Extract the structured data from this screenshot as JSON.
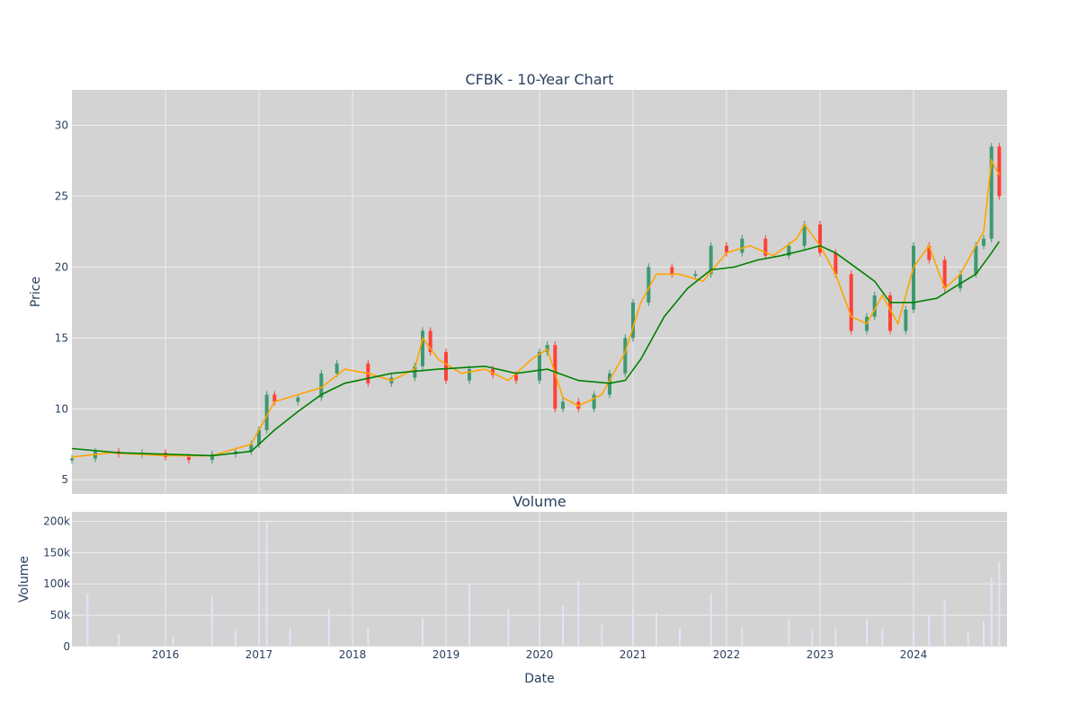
{
  "chart_data": [
    {
      "type": "candlestick",
      "title": "CFBK - 10-Year Chart",
      "xlabel": "",
      "ylabel": "Price",
      "ylim": [
        4,
        32.5
      ],
      "yticks": [
        5,
        10,
        15,
        20,
        25,
        30
      ],
      "grid": true,
      "legend": "none",
      "colors": {
        "plot_bg": "#d3d3d3",
        "grid": "#eeeeee",
        "increasing": "#3d9970",
        "decreasing": "#ff4136",
        "ma_short": "#ffa500",
        "ma_long": "#008000",
        "text": "#2a3f5f"
      },
      "series": [
        {
          "type": "ohlc_close_approx",
          "x": [
            "2015-01",
            "2015-04",
            "2015-07",
            "2015-10",
            "2016-01",
            "2016-04",
            "2016-07",
            "2016-10",
            "2016-12",
            "2017-01",
            "2017-02",
            "2017-03",
            "2017-06",
            "2017-09",
            "2017-11",
            "2018-03",
            "2018-06",
            "2018-09",
            "2018-10",
            "2018-11",
            "2019-01",
            "2019-04",
            "2019-07",
            "2019-10",
            "2020-01",
            "2020-02",
            "2020-03",
            "2020-04",
            "2020-06",
            "2020-08",
            "2020-10",
            "2020-12",
            "2021-01",
            "2021-03",
            "2021-06",
            "2021-09",
            "2021-11",
            "2022-01",
            "2022-03",
            "2022-06",
            "2022-09",
            "2022-11",
            "2023-01",
            "2023-03",
            "2023-05",
            "2023-07",
            "2023-08",
            "2023-10",
            "2023-12",
            "2024-01",
            "2024-03",
            "2024-05",
            "2024-07",
            "2024-09",
            "2024-10",
            "2024-11",
            "2024-12"
          ],
          "y": [
            6.5,
            7.0,
            6.8,
            6.9,
            6.6,
            6.4,
            6.8,
            7.0,
            7.5,
            8.5,
            11.0,
            10.5,
            10.8,
            12.5,
            13.2,
            11.8,
            12.2,
            13.0,
            15.5,
            14.0,
            12.0,
            12.8,
            12.4,
            12.0,
            14.0,
            14.5,
            10.0,
            10.5,
            10.0,
            11.0,
            12.5,
            15.0,
            17.5,
            20.0,
            19.5,
            19.5,
            21.5,
            21.0,
            22.0,
            20.8,
            21.5,
            23.0,
            21.0,
            19.5,
            15.5,
            16.5,
            18.0,
            15.5,
            17.0,
            21.5,
            20.5,
            18.5,
            19.5,
            21.5,
            22.0,
            28.5,
            25.0
          ]
        },
        {
          "name": "",
          "type": "line",
          "role": "short moving average",
          "x": [
            "2015-01",
            "2015-06",
            "2016-01",
            "2016-07",
            "2016-12",
            "2017-01",
            "2017-03",
            "2017-06",
            "2017-09",
            "2017-12",
            "2018-03",
            "2018-06",
            "2018-09",
            "2018-10",
            "2018-12",
            "2019-03",
            "2019-06",
            "2019-09",
            "2019-12",
            "2020-02",
            "2020-04",
            "2020-06",
            "2020-09",
            "2020-12",
            "2021-02",
            "2021-04",
            "2021-07",
            "2021-10",
            "2022-01",
            "2022-04",
            "2022-07",
            "2022-10",
            "2022-11",
            "2023-01",
            "2023-03",
            "2023-05",
            "2023-07",
            "2023-09",
            "2023-11",
            "2024-01",
            "2024-03",
            "2024-05",
            "2024-07",
            "2024-09",
            "2024-10",
            "2024-11",
            "2024-12"
          ],
          "y": [
            6.6,
            6.9,
            6.7,
            6.7,
            7.5,
            8.5,
            10.5,
            11.0,
            11.5,
            12.8,
            12.5,
            12.0,
            12.8,
            15.0,
            13.5,
            12.5,
            12.8,
            12.0,
            13.5,
            14.2,
            10.8,
            10.2,
            11.0,
            14.0,
            17.5,
            19.5,
            19.5,
            19.0,
            21.0,
            21.5,
            20.8,
            22.0,
            23.0,
            21.5,
            19.5,
            16.5,
            16.0,
            18.0,
            16.0,
            20.0,
            21.5,
            18.5,
            19.5,
            21.5,
            22.5,
            27.5,
            26.5
          ]
        },
        {
          "name": "",
          "type": "line",
          "role": "long moving average",
          "x": [
            "2015-01",
            "2015-07",
            "2016-01",
            "2016-07",
            "2016-12",
            "2017-03",
            "2017-06",
            "2017-09",
            "2017-12",
            "2018-06",
            "2018-12",
            "2019-06",
            "2019-10",
            "2020-02",
            "2020-06",
            "2020-10",
            "2020-12",
            "2021-02",
            "2021-05",
            "2021-08",
            "2021-11",
            "2022-02",
            "2022-05",
            "2022-08",
            "2022-11",
            "2023-01",
            "2023-03",
            "2023-05",
            "2023-08",
            "2023-10",
            "2024-01",
            "2024-04",
            "2024-06",
            "2024-09",
            "2024-11",
            "2024-12"
          ],
          "y": [
            7.2,
            6.9,
            6.8,
            6.7,
            7.0,
            8.5,
            9.8,
            11.0,
            11.8,
            12.5,
            12.8,
            13.0,
            12.5,
            12.8,
            12.0,
            11.8,
            12.0,
            13.5,
            16.5,
            18.5,
            19.8,
            20.0,
            20.5,
            20.8,
            21.2,
            21.5,
            21.0,
            20.2,
            19.0,
            17.5,
            17.5,
            17.8,
            18.5,
            19.5,
            21.0,
            21.8
          ]
        }
      ],
      "xticks": [
        "2016",
        "2017",
        "2018",
        "2019",
        "2020",
        "2021",
        "2022",
        "2023",
        "2024"
      ]
    },
    {
      "type": "bar",
      "title": "Volume",
      "xlabel": "Date",
      "ylabel": "Volume",
      "ylim": [
        0,
        215000
      ],
      "yticks": [
        0,
        50000,
        100000,
        150000,
        200000
      ],
      "ytick_labels": [
        "0",
        "50k",
        "100k",
        "150k",
        "200k"
      ],
      "grid": true,
      "legend": "none",
      "colors": {
        "bar": "#e3e3f7",
        "plot_bg": "#d3d3d3"
      },
      "x": [
        "2015-03",
        "2015-07",
        "2016-02",
        "2016-07",
        "2016-10",
        "2017-01",
        "2017-02",
        "2017-05",
        "2017-10",
        "2018-03",
        "2018-10",
        "2019-04",
        "2019-09",
        "2020-01",
        "2020-04",
        "2020-06",
        "2020-09",
        "2021-01",
        "2021-04",
        "2021-07",
        "2021-11",
        "2022-03",
        "2022-09",
        "2022-12",
        "2023-03",
        "2023-07",
        "2023-09",
        "2024-01",
        "2024-03",
        "2024-05",
        "2024-08",
        "2024-10",
        "2024-11",
        "2024-12"
      ],
      "values": [
        85000,
        20000,
        15000,
        80000,
        25000,
        115000,
        200000,
        30000,
        60000,
        30000,
        45000,
        100000,
        60000,
        40000,
        65000,
        105000,
        35000,
        60000,
        55000,
        30000,
        85000,
        30000,
        45000,
        25000,
        30000,
        45000,
        30000,
        25000,
        50000,
        75000,
        25000,
        40000,
        110000,
        135000
      ]
    }
  ]
}
